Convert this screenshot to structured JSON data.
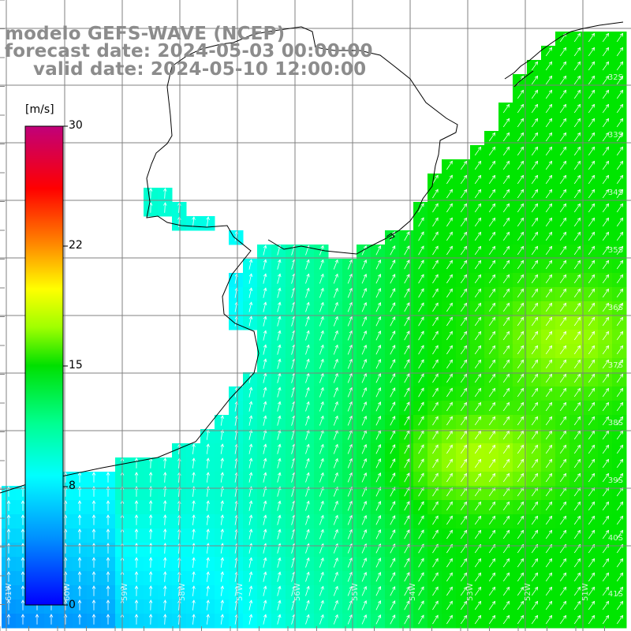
{
  "title": {
    "model": "modelo GEFS-WAVE (NCEP)",
    "forecast": "forecast date: 2024-05-03 00:00:00",
    "valid": "valid date: 2024-05-10 12:00:00"
  },
  "colorbar": {
    "unit": "[m/s]",
    "ticks": [
      "30",
      "22",
      "15",
      "8",
      "0"
    ],
    "tick_values": [
      30,
      22,
      15,
      8,
      0
    ],
    "colors": [
      "#0000ff",
      "#0080ff",
      "#00c0ff",
      "#00ffff",
      "#00ff80",
      "#00e000",
      "#80ff00",
      "#ffff00",
      "#ffa500",
      "#ff5a00",
      "#ff0000",
      "#e00050",
      "#c0007a"
    ]
  },
  "axes": {
    "lon_labels": [
      "61W",
      "60W",
      "59W",
      "58W",
      "57W",
      "56W",
      "55W",
      "54W",
      "53W",
      "52W",
      "51W"
    ],
    "lat_labels": [
      "32S",
      "33S",
      "34S",
      "35S",
      "36S",
      "37S",
      "38S",
      "39S",
      "40S",
      "41S"
    ]
  },
  "colors": {
    "land": "#ffffff",
    "grid": "#808080",
    "coast": "#000000",
    "arrow": "#ffffff",
    "title": "#8c8c8c"
  }
}
